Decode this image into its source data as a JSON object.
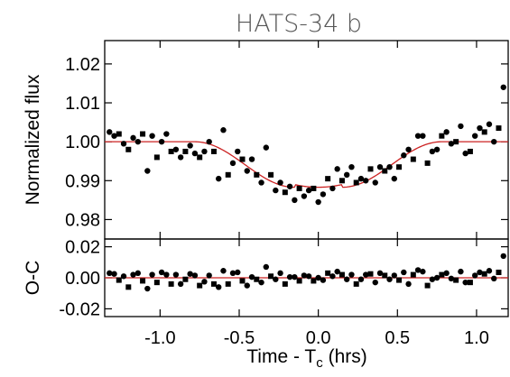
{
  "chart_data": {
    "type": "scatter",
    "title": "HATS-34 b",
    "xlabel": "Time - T",
    "xlabel_subscript": "c",
    "xlabel_suffix": " (hrs)",
    "xlim": [
      -1.35,
      1.2
    ],
    "x_ticks": [
      -1.0,
      -0.5,
      0.0,
      0.5,
      1.0
    ],
    "x_tick_labels": [
      "-1.0",
      "-0.5",
      "0.0",
      "0.5",
      "1.0"
    ],
    "colors": {
      "model": "#cc2222",
      "points": "#000000",
      "frame": "#000000"
    },
    "panels": [
      {
        "name": "flux",
        "ylabel": "Normalized flux",
        "ylim": [
          0.975,
          1.026
        ],
        "y_ticks": [
          0.98,
          0.99,
          1.0,
          1.01,
          1.02
        ],
        "y_tick_labels": [
          "0.98",
          "0.99",
          "1.00",
          "1.01",
          "1.02"
        ],
        "model_type": "transit",
        "model": {
          "baseline": 1.0,
          "depth": 0.0117,
          "t1": -0.78,
          "t2": -0.15,
          "t3": 0.15,
          "t4": 0.78
        },
        "points": {
          "x": [
            -1.32,
            -1.29,
            -1.26,
            -1.23,
            -1.2,
            -1.17,
            -1.14,
            -1.11,
            -1.08,
            -1.05,
            -1.02,
            -0.99,
            -0.96,
            -0.93,
            -0.9,
            -0.87,
            -0.84,
            -0.81,
            -0.78,
            -0.75,
            -0.72,
            -0.69,
            -0.66,
            -0.63,
            -0.6,
            -0.57,
            -0.54,
            -0.51,
            -0.48,
            -0.45,
            -0.42,
            -0.39,
            -0.36,
            -0.33,
            -0.3,
            -0.27,
            -0.24,
            -0.21,
            -0.18,
            -0.15,
            -0.12,
            -0.09,
            -0.06,
            -0.03,
            0.0,
            0.03,
            0.06,
            0.09,
            0.12,
            0.15,
            0.18,
            0.21,
            0.24,
            0.27,
            0.3,
            0.33,
            0.36,
            0.39,
            0.42,
            0.45,
            0.48,
            0.51,
            0.54,
            0.57,
            0.6,
            0.63,
            0.66,
            0.69,
            0.72,
            0.75,
            0.78,
            0.81,
            0.84,
            0.87,
            0.9,
            0.93,
            0.96,
            0.99,
            1.02,
            1.05,
            1.08,
            1.11,
            1.14,
            1.17
          ],
          "y": [
            1.0025,
            1.0015,
            1.002,
            0.9995,
            0.998,
            1.001,
            1.0,
            1.002,
            0.9925,
            1.0015,
            0.996,
            1.0,
            1.002,
            0.9975,
            0.998,
            0.996,
            0.9975,
            0.999,
            0.997,
            0.996,
            0.9975,
            1.0,
            0.9975,
            0.9905,
            1.003,
            0.9915,
            0.9945,
            0.9975,
            0.9955,
            0.9925,
            0.9955,
            0.9915,
            0.9895,
            0.9985,
            0.9915,
            0.9875,
            0.9895,
            0.987,
            0.9885,
            0.985,
            0.988,
            0.986,
            0.9875,
            0.988,
            0.9845,
            0.9865,
            0.9905,
            0.988,
            0.993,
            0.99,
            0.9915,
            0.9935,
            0.9895,
            0.9905,
            0.99,
            0.993,
            0.9895,
            0.9935,
            0.9925,
            0.9935,
            0.9905,
            0.9935,
            0.9965,
            0.998,
            0.9955,
            1.0015,
            1.0015,
            0.9945,
            0.9975,
            0.998,
            1.0015,
            1.0025,
            0.9995,
            1.0,
            1.004,
            0.997,
            0.9975,
            1.0015,
            1.0035,
            1.0025,
            1.0045,
            1.0,
            1.0035,
            1.014
          ],
          "markers": [
            "circle",
            "circle",
            "square",
            "circle",
            "square",
            "circle",
            "circle",
            "square",
            "circle",
            "circle",
            "square",
            "circle",
            "circle",
            "square",
            "circle",
            "circle",
            "square",
            "circle",
            "circle",
            "square",
            "circle",
            "circle",
            "square",
            "circle",
            "circle",
            "square",
            "circle",
            "circle",
            "square",
            "circle",
            "circle",
            "square",
            "circle",
            "circle",
            "square",
            "circle",
            "circle",
            "square",
            "circle",
            "circle",
            "square",
            "circle",
            "circle",
            "square",
            "circle",
            "circle",
            "square",
            "circle",
            "circle",
            "square",
            "circle",
            "circle",
            "square",
            "circle",
            "circle",
            "square",
            "circle",
            "circle",
            "square",
            "circle",
            "circle",
            "square",
            "circle",
            "circle",
            "square",
            "circle",
            "circle",
            "square",
            "circle",
            "circle",
            "square",
            "circle",
            "circle",
            "square",
            "circle",
            "circle",
            "square",
            "circle",
            "circle",
            "square",
            "circle",
            "circle",
            "square",
            "circle"
          ]
        }
      },
      {
        "name": "residuals",
        "ylabel": "O-C",
        "ylim": [
          -0.025,
          0.025
        ],
        "y_ticks": [
          -0.02,
          0.0,
          0.02
        ],
        "y_tick_labels": [
          "-0.02",
          "0.00",
          "0.02"
        ],
        "model_type": "flat",
        "model": {
          "baseline": 0.0
        },
        "points": {
          "x": [
            -1.32,
            -1.29,
            -1.26,
            -1.23,
            -1.2,
            -1.17,
            -1.14,
            -1.11,
            -1.08,
            -1.05,
            -1.02,
            -0.99,
            -0.96,
            -0.93,
            -0.9,
            -0.87,
            -0.84,
            -0.81,
            -0.78,
            -0.75,
            -0.72,
            -0.69,
            -0.66,
            -0.63,
            -0.6,
            -0.57,
            -0.54,
            -0.51,
            -0.48,
            -0.45,
            -0.42,
            -0.39,
            -0.36,
            -0.33,
            -0.3,
            -0.27,
            -0.24,
            -0.21,
            -0.18,
            -0.15,
            -0.12,
            -0.09,
            -0.06,
            -0.03,
            0.0,
            0.03,
            0.06,
            0.09,
            0.12,
            0.15,
            0.18,
            0.21,
            0.24,
            0.27,
            0.3,
            0.33,
            0.36,
            0.39,
            0.42,
            0.45,
            0.48,
            0.51,
            0.54,
            0.57,
            0.6,
            0.63,
            0.66,
            0.69,
            0.72,
            0.75,
            0.78,
            0.81,
            0.84,
            0.87,
            0.9,
            0.93,
            0.96,
            0.99,
            1.02,
            1.05,
            1.08,
            1.11,
            1.14,
            1.17
          ],
          "y": [
            0.003,
            0.0025,
            -0.0015,
            0.001,
            -0.006,
            0.002,
            0.003,
            -0.002,
            -0.007,
            0.002,
            -0.003,
            0.0035,
            0.002,
            -0.004,
            0.002,
            -0.004,
            -0.001,
            0.0025,
            0.0015,
            -0.005,
            -0.0025,
            0.0015,
            -0.004,
            -0.006,
            0.0045,
            -0.004,
            0.003,
            0.0035,
            -0.002,
            -0.005,
            0.0005,
            -0.001,
            -0.003,
            0.007,
            0.001,
            -0.001,
            0.003,
            -0.004,
            0.0005,
            0.0005,
            -0.002,
            0.0015,
            0.001,
            -0.002,
            0.0,
            -0.0015,
            0.003,
            0.001,
            0.004,
            0.002,
            -0.001,
            0.002,
            -0.004,
            -0.001,
            0.002,
            0.0025,
            -0.003,
            0.003,
            0.0015,
            -0.001,
            0.0015,
            -0.0015,
            0.0035,
            -0.004,
            0.002,
            0.005,
            0.004,
            -0.005,
            -0.001,
            0.0,
            0.002,
            0.003,
            -0.0005,
            -0.0015,
            0.004,
            -0.003,
            -0.003,
            0.0015,
            0.0035,
            0.0025,
            0.0045,
            -0.0005,
            0.0035,
            0.014
          ],
          "markers": [
            "circle",
            "circle",
            "square",
            "circle",
            "square",
            "circle",
            "circle",
            "square",
            "circle",
            "circle",
            "square",
            "circle",
            "circle",
            "square",
            "circle",
            "circle",
            "square",
            "circle",
            "circle",
            "square",
            "circle",
            "circle",
            "square",
            "circle",
            "circle",
            "square",
            "circle",
            "circle",
            "square",
            "circle",
            "circle",
            "square",
            "circle",
            "circle",
            "square",
            "circle",
            "circle",
            "square",
            "circle",
            "circle",
            "square",
            "circle",
            "circle",
            "square",
            "circle",
            "circle",
            "square",
            "circle",
            "circle",
            "square",
            "circle",
            "circle",
            "square",
            "circle",
            "circle",
            "square",
            "circle",
            "circle",
            "square",
            "circle",
            "circle",
            "square",
            "circle",
            "circle",
            "square",
            "circle",
            "circle",
            "square",
            "circle",
            "circle",
            "square",
            "circle",
            "circle",
            "square",
            "circle",
            "circle",
            "square",
            "circle",
            "circle",
            "square",
            "circle",
            "circle",
            "square",
            "circle"
          ]
        }
      }
    ]
  }
}
